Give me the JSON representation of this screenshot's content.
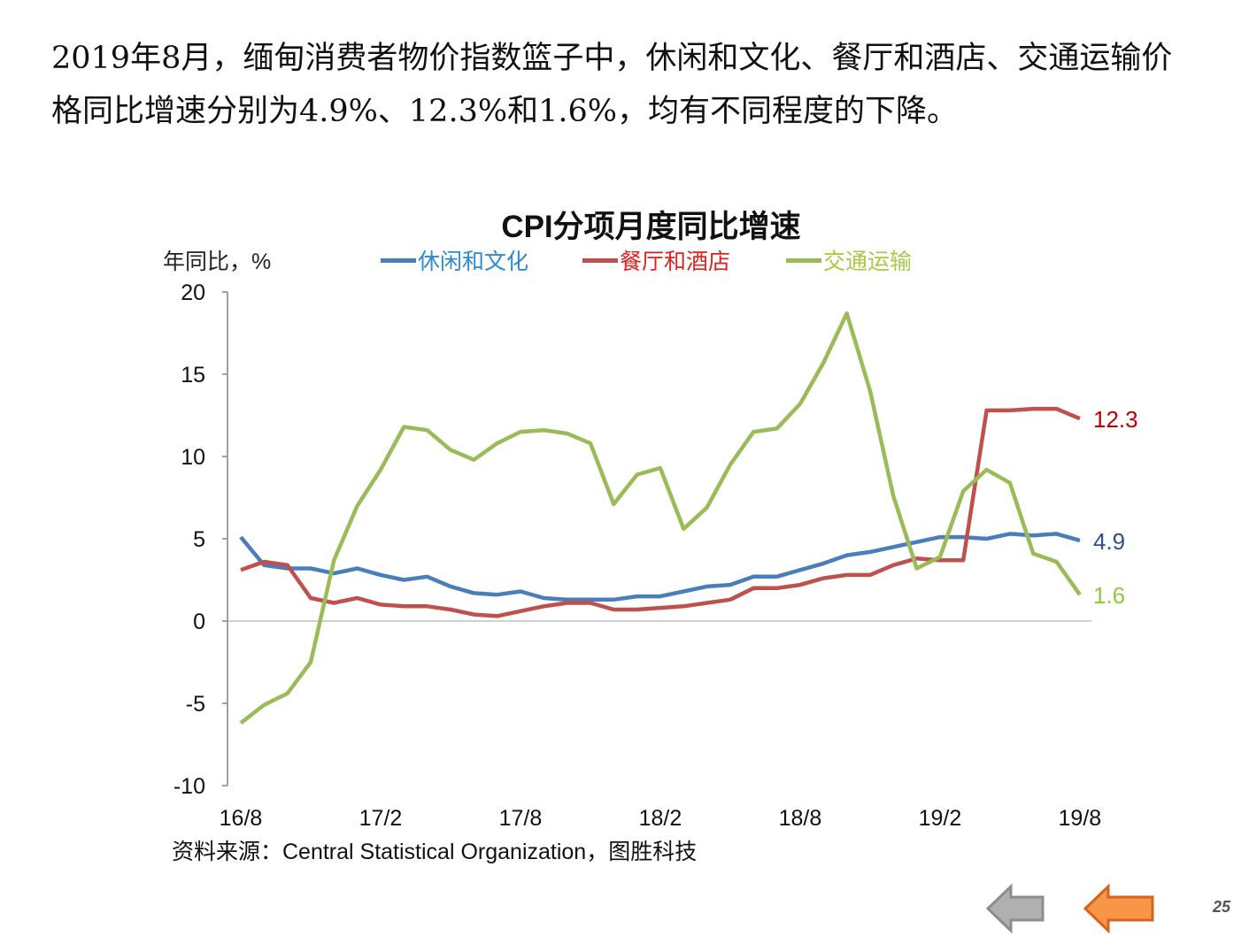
{
  "paragraph": "2019年8月，缅甸消费者物价指数篮子中，休闲和文化、餐厅和酒店、交通运输价格同比增速分别为4.9%、12.3%和1.6%，均有不同程度的下降。",
  "page_number": "25",
  "nav": {
    "prev_icon": "arrow-left-gray",
    "next_icon": "arrow-left-orange"
  },
  "chart_data": {
    "type": "line",
    "title": "CPI分项月度同比增速",
    "ylabel": "年同比，%",
    "xlabel": "",
    "source": "资料来源：Central  Statistical Organization，图胜科技",
    "ylim": [
      -10,
      20
    ],
    "yticks": [
      "20",
      "15",
      "10",
      "5",
      "0",
      "-5",
      "-10"
    ],
    "ytick_values": [
      20,
      15,
      10,
      5,
      0,
      -5,
      -10
    ],
    "xtick_labels": [
      "16/8",
      "17/2",
      "17/8",
      "18/2",
      "18/8",
      "19/2",
      "19/8"
    ],
    "xtick_indices": [
      0,
      6,
      12,
      18,
      24,
      30,
      36
    ],
    "legend_position": "top",
    "series": [
      {
        "name": "休闲和文化",
        "color": "#4a7ebb",
        "label_color": "#2e4f8a",
        "end_label": "4.9",
        "values": [
          5.1,
          3.4,
          3.2,
          3.2,
          2.9,
          3.2,
          2.8,
          2.5,
          2.7,
          2.1,
          1.7,
          1.6,
          1.8,
          1.4,
          1.3,
          1.3,
          1.3,
          1.5,
          1.5,
          1.8,
          2.1,
          2.2,
          2.7,
          2.7,
          3.1,
          3.5,
          4.0,
          4.2,
          4.5,
          4.8,
          5.1,
          5.1,
          5.0,
          5.3,
          5.2,
          5.3,
          4.9
        ]
      },
      {
        "name": "餐厅和酒店",
        "color": "#c0504d",
        "label_color": "#c00000",
        "end_label": "12.3",
        "values": [
          3.1,
          3.6,
          3.4,
          1.4,
          1.1,
          1.4,
          1.0,
          0.9,
          0.9,
          0.7,
          0.4,
          0.3,
          0.6,
          0.9,
          1.1,
          1.1,
          0.7,
          0.7,
          0.8,
          0.9,
          1.1,
          1.3,
          2.0,
          2.0,
          2.2,
          2.6,
          2.8,
          2.8,
          3.4,
          3.8,
          3.7,
          3.7,
          12.8,
          12.8,
          12.9,
          12.9,
          12.3
        ]
      },
      {
        "name": "交通运输",
        "color": "#9bbb59",
        "label_color": "#92c83e",
        "end_label": "1.6",
        "values": [
          -6.2,
          -5.1,
          -4.4,
          -2.5,
          3.7,
          7.0,
          9.2,
          11.8,
          11.6,
          10.4,
          9.8,
          10.8,
          11.5,
          11.6,
          11.4,
          10.8,
          7.1,
          8.9,
          9.3,
          5.6,
          6.9,
          9.5,
          11.5,
          11.7,
          13.2,
          15.7,
          18.7,
          14.0,
          7.6,
          3.2,
          3.9,
          7.9,
          9.2,
          8.4,
          4.1,
          3.6,
          1.6
        ]
      }
    ]
  }
}
